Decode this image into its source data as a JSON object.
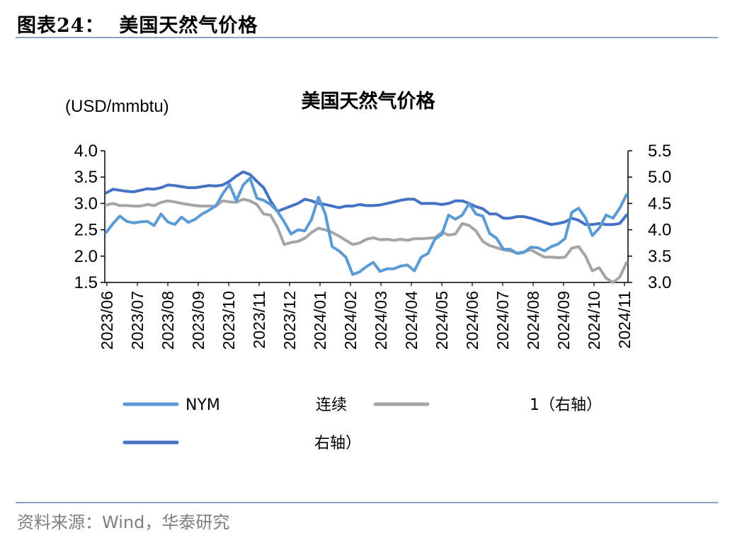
{
  "figure": {
    "label": "图表24：",
    "title": "美国天然气价格"
  },
  "source": "资料来源：Wind，华泰研究",
  "chart_data": {
    "type": "line",
    "title": "美国天然气价格",
    "left_unit": "(USD/mmbtu)",
    "left_axis": {
      "min": 1.5,
      "max": 4.0,
      "ticks": [
        "1.5",
        "2.0",
        "2.5",
        "3.0",
        "3.5",
        "4.0"
      ]
    },
    "right_axis": {
      "min": 3.0,
      "max": 5.5,
      "ticks": [
        "3.0",
        "3.5",
        "4.0",
        "4.5",
        "5.0",
        "5.5"
      ]
    },
    "x_ticks": [
      "2023/06",
      "2023/07",
      "2023/08",
      "2023/09",
      "2023/10",
      "2023/11",
      "2023/12",
      "2024/01",
      "2024/02",
      "2024/03",
      "2024/04",
      "2024/05",
      "2024/06",
      "2024/07",
      "2024/08",
      "2024/09",
      "2024/10",
      "2024/11"
    ],
    "grid": false,
    "legend_position": "bottom",
    "legend": [
      {
        "key": "nymex",
        "visible_text_left": "NYM",
        "visible_text_right": "连续"
      },
      {
        "key": "grey",
        "visible_text_right": "1（右轴）"
      },
      {
        "key": "darkblue",
        "visible_text_right": "右轴）"
      }
    ],
    "series": [
      {
        "key": "nymex",
        "axis": "left",
        "color": "#5b9bd5",
        "values": [
          2.45,
          2.62,
          2.76,
          2.66,
          2.63,
          2.65,
          2.66,
          2.58,
          2.8,
          2.65,
          2.6,
          2.74,
          2.64,
          2.7,
          2.8,
          2.87,
          2.95,
          3.18,
          3.36,
          3.05,
          3.35,
          3.48,
          3.1,
          3.06,
          2.98,
          2.85,
          2.65,
          2.42,
          2.5,
          2.48,
          2.7,
          3.12,
          2.8,
          2.18,
          2.1,
          1.98,
          1.65,
          1.7,
          1.8,
          1.88,
          1.71,
          1.76,
          1.76,
          1.81,
          1.83,
          1.72,
          1.98,
          2.05,
          2.32,
          2.41,
          2.78,
          2.7,
          2.78,
          3.0,
          2.8,
          2.76,
          2.43,
          2.34,
          2.13,
          2.13,
          2.05,
          2.07,
          2.17,
          2.16,
          2.1,
          2.18,
          2.23,
          2.33,
          2.83,
          2.91,
          2.72,
          2.39,
          2.53,
          2.78,
          2.72,
          2.91,
          3.17
        ]
      },
      {
        "key": "grey",
        "axis": "right",
        "color": "#a5a5a5",
        "values": [
          4.47,
          4.5,
          4.46,
          4.46,
          4.45,
          4.45,
          4.48,
          4.46,
          4.52,
          4.55,
          4.53,
          4.5,
          4.48,
          4.46,
          4.45,
          4.45,
          4.45,
          4.55,
          4.53,
          4.52,
          4.58,
          4.55,
          4.48,
          4.3,
          4.28,
          4.05,
          3.72,
          3.76,
          3.78,
          3.84,
          3.95,
          4.03,
          4.0,
          3.95,
          3.88,
          3.8,
          3.72,
          3.75,
          3.82,
          3.85,
          3.81,
          3.82,
          3.8,
          3.82,
          3.8,
          3.83,
          3.83,
          3.84,
          3.85,
          3.95,
          3.9,
          3.92,
          4.12,
          4.08,
          3.98,
          3.78,
          3.7,
          3.66,
          3.62,
          3.6,
          3.56,
          3.58,
          3.62,
          3.55,
          3.48,
          3.48,
          3.47,
          3.48,
          3.65,
          3.68,
          3.5,
          3.22,
          3.28,
          3.08,
          3.0,
          3.1,
          3.38
        ]
      },
      {
        "key": "darkblue",
        "axis": "right",
        "color": "#4472c4",
        "values": [
          4.7,
          4.77,
          4.75,
          4.73,
          4.72,
          4.75,
          4.78,
          4.77,
          4.8,
          4.85,
          4.84,
          4.82,
          4.8,
          4.8,
          4.82,
          4.84,
          4.83,
          4.85,
          4.92,
          5.02,
          5.1,
          5.05,
          4.92,
          4.8,
          4.55,
          4.35,
          4.4,
          4.45,
          4.5,
          4.58,
          4.55,
          4.5,
          4.48,
          4.45,
          4.42,
          4.45,
          4.45,
          4.48,
          4.46,
          4.46,
          4.47,
          4.5,
          4.53,
          4.56,
          4.58,
          4.58,
          4.5,
          4.5,
          4.5,
          4.48,
          4.5,
          4.55,
          4.55,
          4.5,
          4.44,
          4.4,
          4.3,
          4.3,
          4.22,
          4.22,
          4.25,
          4.25,
          4.22,
          4.18,
          4.14,
          4.1,
          4.12,
          4.15,
          4.22,
          4.18,
          4.1,
          4.1,
          4.12,
          4.1,
          4.1,
          4.12,
          4.28
        ]
      }
    ]
  }
}
